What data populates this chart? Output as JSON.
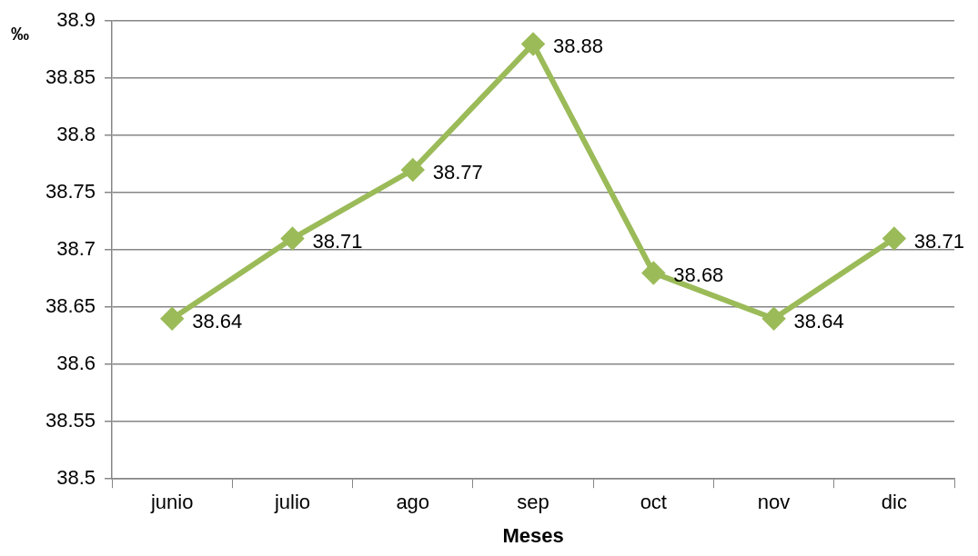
{
  "chart_data": {
    "type": "line",
    "xlabel": "Meses",
    "ylabel": "‰",
    "categories": [
      "junio",
      "julio",
      "ago",
      "sep",
      "oct",
      "nov",
      "dic"
    ],
    "series": [
      {
        "color": "#9bbb59",
        "values": [
          38.64,
          38.71,
          38.77,
          38.88,
          38.68,
          38.64,
          38.71
        ]
      }
    ],
    "ylim": [
      38.5,
      38.9
    ],
    "yticks": [
      38.5,
      38.55,
      38.6,
      38.65,
      38.7,
      38.75,
      38.8,
      38.85,
      38.9
    ],
    "grid": "y",
    "legend": false,
    "marker": "diamond",
    "line_style": "solid",
    "data_labels": true
  }
}
